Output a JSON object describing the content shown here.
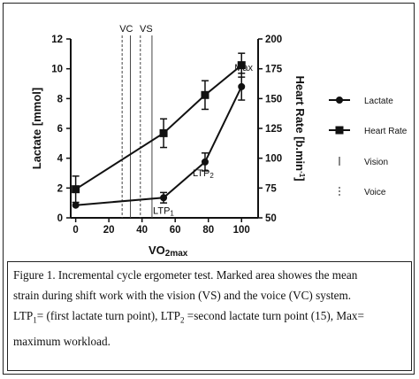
{
  "chart_data": {
    "type": "line",
    "x": [
      0,
      53,
      78,
      100
    ],
    "x_lactate": [
      0,
      53,
      78,
      100
    ],
    "x_hr": [
      0,
      53,
      78,
      100
    ],
    "xlabel_main": "VO",
    "xlabel_sub": "2max",
    "ylabel_left": "Lactate [mmol]",
    "ylabel_right_main": "Heart  Rate [b.min",
    "ylabel_right_sup": "-1",
    "ylabel_right_end": "]",
    "xlim": [
      -3,
      110
    ],
    "ylim_left": [
      0,
      12
    ],
    "ylim_right": [
      50,
      200
    ],
    "xticks": [
      "0",
      "20",
      "40",
      "60",
      "80",
      "100"
    ],
    "xtick_values": [
      0,
      20,
      40,
      60,
      80,
      100
    ],
    "yticks_left": [
      "0",
      "2",
      "4",
      "6",
      "8",
      "10",
      "12"
    ],
    "ytick_left_values": [
      0,
      2,
      4,
      6,
      8,
      10,
      12
    ],
    "yticks_right": [
      "50",
      "75",
      "100",
      "125",
      "150",
      "175",
      "200"
    ],
    "ytick_right_values": [
      50,
      75,
      100,
      125,
      150,
      175,
      200
    ],
    "series": [
      {
        "name": "Lactate",
        "axis": "left",
        "marker": "circle",
        "values": [
          0.85,
          1.35,
          3.75,
          8.8
        ],
        "err": [
          0,
          0.35,
          0.6,
          0.9
        ]
      },
      {
        "name": "Heart Rate",
        "axis": "right",
        "marker": "square",
        "values": [
          74,
          121,
          153,
          178
        ],
        "err": [
          11,
          12,
          12,
          10
        ]
      }
    ],
    "vertical_lines": [
      {
        "name": "Vision",
        "style": "solid",
        "x": [
          33,
          46
        ]
      },
      {
        "name": "Voice",
        "style": "dashed",
        "x": [
          28,
          39
        ]
      }
    ],
    "top_labels": {
      "vc": "VC",
      "vs": "VS"
    },
    "annotations": [
      {
        "main": "LTP",
        "sub": "1",
        "x": 53,
        "y": 1.35
      },
      {
        "main": "LTP",
        "sub": "2",
        "x": 78,
        "y": 3.75
      },
      {
        "main": "Max",
        "sub": "",
        "x": 100,
        "y": 8.8
      }
    ],
    "legend": {
      "placement": "right",
      "entries": [
        {
          "label": "Lactate",
          "symbol": "circle-line"
        },
        {
          "label": "Heart Rate",
          "symbol": "square-line"
        },
        {
          "label": "Vision",
          "symbol": "solid-tick"
        },
        {
          "label": "Voice",
          "symbol": "dashed-tick"
        }
      ]
    },
    "grid": false
  },
  "caption": {
    "line1": "Figure 1. Incremental cycle ergometer test. Marked area showes the mean",
    "line2": "strain during shift work with the vision (VS) and the voice (VC) system.",
    "line3_a": "LTP",
    "line3_a_sub": "1",
    "line3_b": "= (first lactate turn point), LTP",
    "line3_b_sub": "2",
    "line3_c": " =second lactate turn point (15), Max=",
    "line4": "maximum workload."
  }
}
